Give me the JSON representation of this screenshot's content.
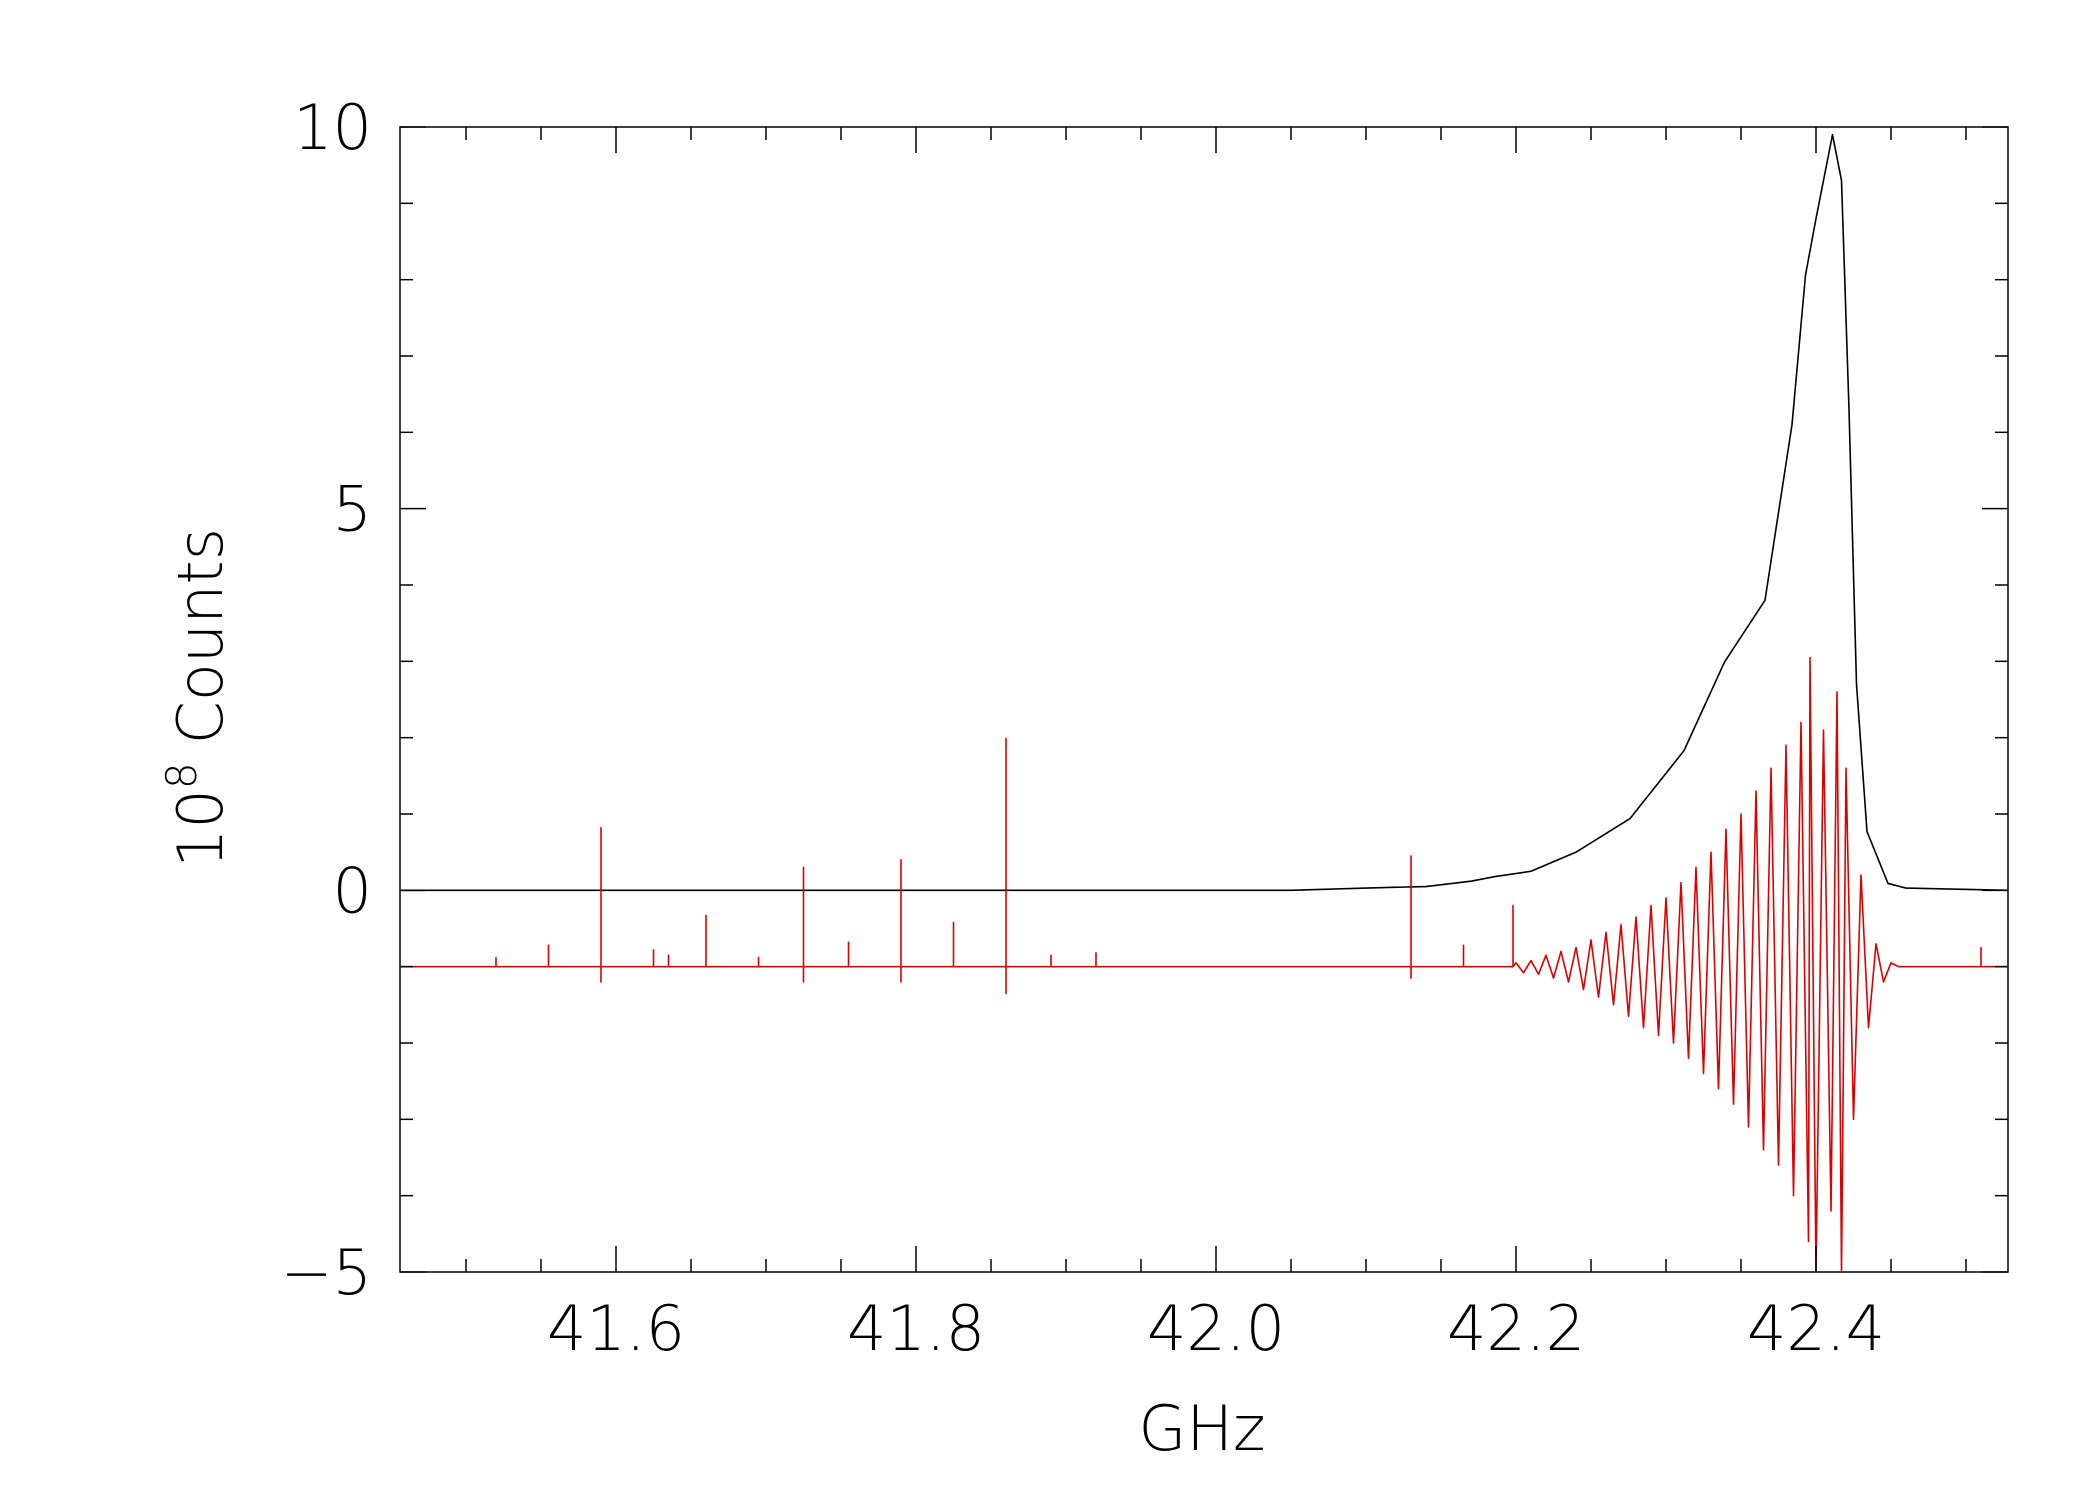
{
  "chart_data": {
    "type": "line",
    "xlabel": "GHz",
    "ylabel_base": "10",
    "ylabel_exponent": "8",
    "ylabel_unit": "Counts",
    "xlim": [
      41.456,
      42.528
    ],
    "ylim": [
      -5,
      10
    ],
    "xticks": [
      41.6,
      41.8,
      {
        "value": 42,
        "label": "42.0"
      },
      42.2,
      42.4
    ],
    "yticks": [
      {
        "value": -5,
        "label": "−5"
      },
      0,
      5,
      10
    ],
    "xminorticks": [
      41.5,
      41.55,
      41.65,
      41.7,
      41.75,
      41.85,
      41.9,
      41.95,
      42.05,
      42.1,
      42.15,
      42.25,
      42.3,
      42.35,
      42.45,
      42.5
    ],
    "yminorticks": [
      -4,
      -3,
      -2,
      -1,
      1,
      2,
      3,
      4,
      6,
      7,
      8,
      9
    ],
    "mirror_ticks": true,
    "series": [
      {
        "color": "#000000",
        "x": [
          41.456,
          41.9,
          42.05,
          42.1,
          42.14,
          42.17,
          42.186,
          42.21,
          42.24,
          42.276,
          42.312,
          42.339,
          42.366,
          42.384,
          42.393,
          42.4,
          42.411,
          42.417,
          42.422,
          42.427,
          42.434,
          42.448,
          42.46,
          42.528
        ],
        "values": [
          0,
          0,
          0,
          0.03,
          0.05,
          0.12,
          0.18,
          0.25,
          0.5,
          0.94,
          1.83,
          2.99,
          3.8,
          6.1,
          8.06,
          8.8,
          9.9,
          9.3,
          6.3,
          2.7,
          0.77,
          0.09,
          0.03,
          0
        ]
      },
      {
        "color": "#dd0000",
        "x": [
          41.456,
          41.52,
          41.52,
          41.52,
          41.555,
          41.555,
          41.555,
          41.59,
          41.59,
          41.59,
          41.59,
          41.625,
          41.625,
          41.625,
          41.635,
          41.635,
          41.635,
          41.66,
          41.66,
          41.66,
          41.695,
          41.695,
          41.695,
          41.725,
          41.725,
          41.725,
          41.725,
          41.755,
          41.755,
          41.755,
          41.79,
          41.79,
          41.79,
          41.79,
          41.825,
          41.825,
          41.825,
          41.86,
          41.86,
          41.86,
          41.86,
          41.89,
          41.89,
          41.89,
          41.92,
          41.92,
          41.92,
          42.13,
          42.13,
          42.13,
          42.13,
          42.165,
          42.165,
          42.165,
          42.198,
          42.198,
          42.198,
          42.2,
          42.205,
          42.21,
          42.215,
          42.22,
          42.225,
          42.23,
          42.235,
          42.24,
          42.245,
          42.25,
          42.255,
          42.26,
          42.265,
          42.27,
          42.275,
          42.28,
          42.285,
          42.29,
          42.295,
          42.3,
          42.305,
          42.31,
          42.315,
          42.32,
          42.325,
          42.33,
          42.335,
          42.34,
          42.345,
          42.35,
          42.355,
          42.36,
          42.365,
          42.37,
          42.375,
          42.38,
          42.385,
          42.39,
          42.395,
          42.396,
          42.4,
          42.405,
          42.41,
          42.414,
          42.417,
          42.42,
          42.425,
          42.43,
          42.435,
          42.44,
          42.445,
          42.45,
          42.455,
          42.51,
          42.51,
          42.51,
          42.528
        ],
        "values": [
          -1,
          -1,
          -0.88,
          -1,
          -1,
          -0.72,
          -1,
          -1,
          0.82,
          -1.2,
          -1,
          -1,
          -0.78,
          -1,
          -1,
          -0.85,
          -1,
          -1,
          -0.33,
          -1,
          -1,
          -0.88,
          -1,
          -1,
          0.3,
          -1.2,
          -1,
          -1,
          -0.68,
          -1,
          -1,
          0.4,
          -1.2,
          -1,
          -1,
          -0.42,
          -1,
          -1,
          1.99,
          -1.35,
          -1,
          -1,
          -0.85,
          -1,
          -1,
          -0.82,
          -1,
          -1,
          0.45,
          -1.15,
          -1,
          -1,
          -0.72,
          -1,
          -1,
          -0.2,
          -1,
          -0.95,
          -1.08,
          -0.92,
          -1.1,
          -0.85,
          -1.15,
          -0.8,
          -1.2,
          -0.75,
          -1.3,
          -0.65,
          -1.4,
          -0.55,
          -1.5,
          -0.45,
          -1.65,
          -0.35,
          -1.8,
          -0.2,
          -1.9,
          -0.1,
          -2.0,
          0.1,
          -2.2,
          0.3,
          -2.4,
          0.5,
          -2.6,
          0.8,
          -2.8,
          1.0,
          -3.1,
          1.3,
          -3.4,
          1.6,
          -3.6,
          1.9,
          -4.0,
          2.2,
          -4.6,
          3.05,
          -5.0,
          2.1,
          -4.2,
          2.6,
          -5.0,
          1.6,
          -3.0,
          0.2,
          -1.8,
          -0.7,
          -1.2,
          -0.95,
          -1.0,
          -1,
          -0.75,
          -1,
          -1
        ]
      }
    ]
  }
}
